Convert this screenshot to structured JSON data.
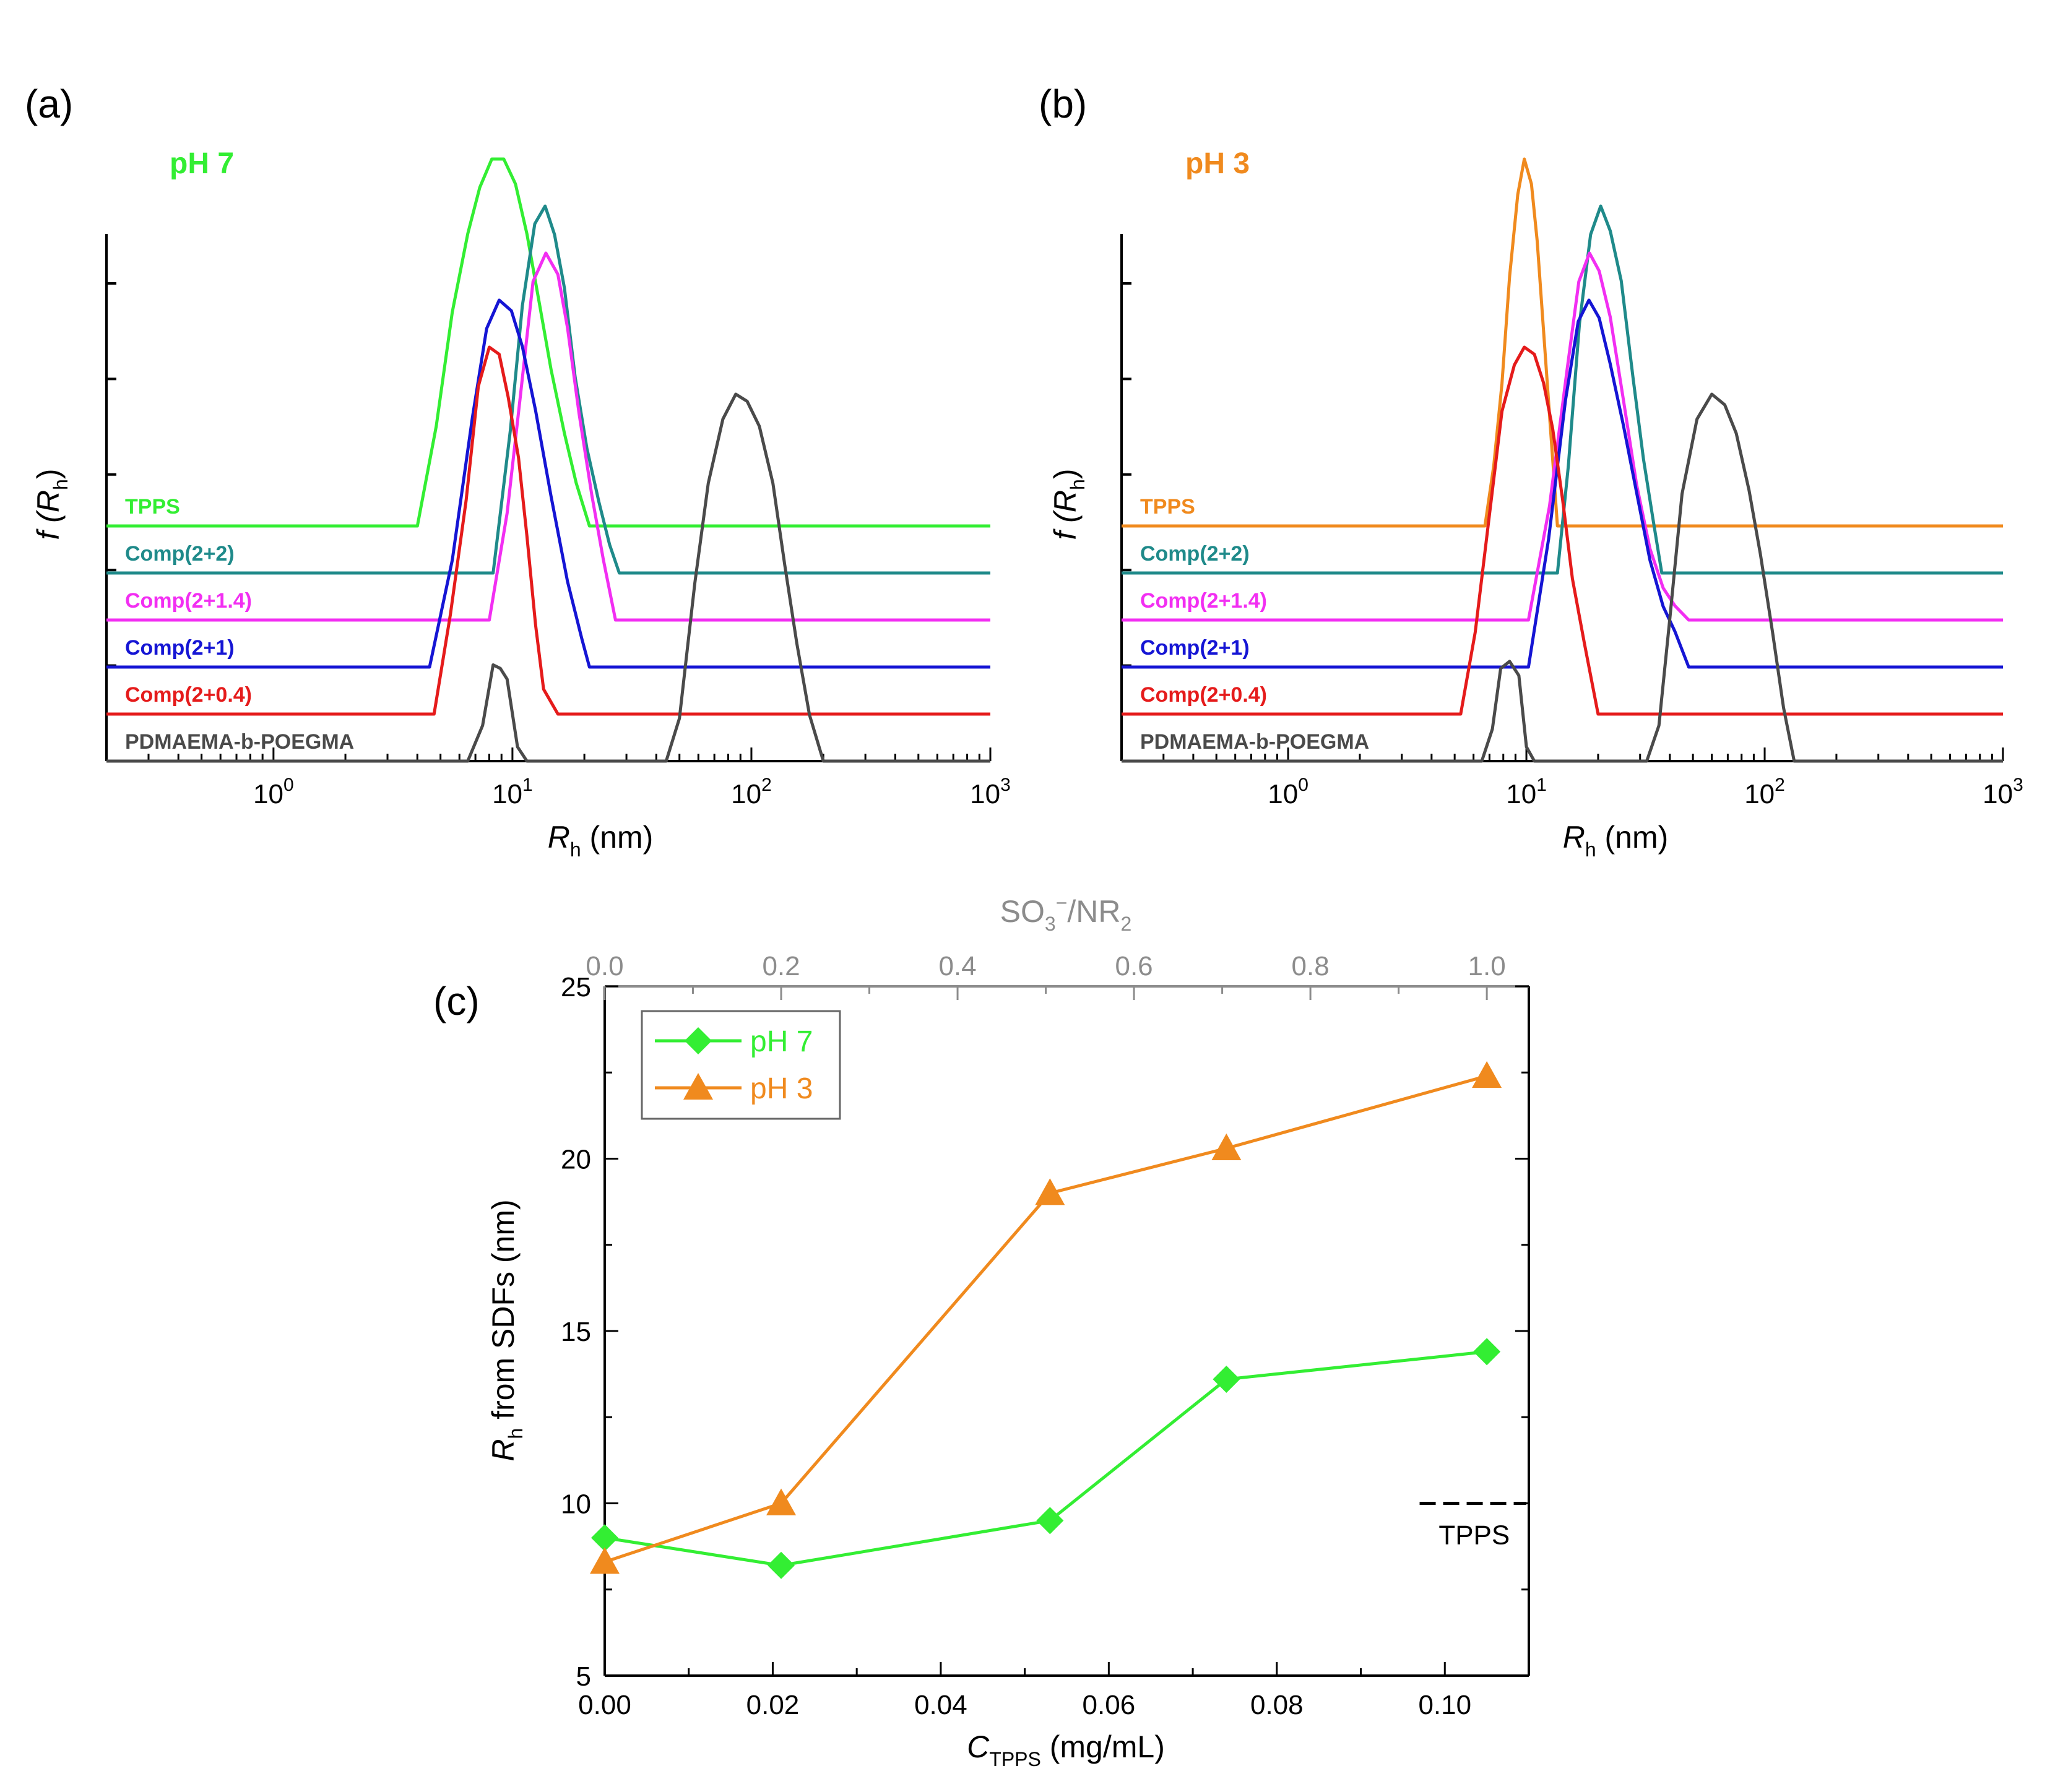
{
  "chart_data": [
    {
      "type": "line",
      "panel_label": "(a)",
      "condition_label": "pH 7",
      "condition_color": "#33ee33",
      "xlabel_main": "R",
      "xlabel_sub": "h",
      "xlabel_unit": " (nm)",
      "ylabel_main": "f (R",
      "ylabel_sub": "h",
      "ylabel_end": ")",
      "x_scale": "log",
      "xlim": [
        0.2,
        1000
      ],
      "x_ticks": [
        {
          "base": "10",
          "exp": "0"
        },
        {
          "base": "10",
          "exp": "1"
        },
        {
          "base": "10",
          "exp": "2"
        },
        {
          "base": "10",
          "exp": "3"
        }
      ],
      "series": [
        {
          "name": "TPPS",
          "color": "#33ee33",
          "baseline": 5,
          "height": 10.3,
          "points": [
            [
              4,
              0
            ],
            [
              4.8,
              2.8
            ],
            [
              5.6,
              6.0
            ],
            [
              6.5,
              8.2
            ],
            [
              7.3,
              9.5
            ],
            [
              8.2,
              10.3
            ],
            [
              9.2,
              10.3
            ],
            [
              10.3,
              9.6
            ],
            [
              11.5,
              8.2
            ],
            [
              13,
              6.2
            ],
            [
              14.5,
              4.4
            ],
            [
              16.5,
              2.6
            ],
            [
              18.5,
              1.2
            ],
            [
              21,
              0
            ]
          ]
        },
        {
          "name": "Comp(2+2)",
          "color": "#1f8a8a",
          "baseline": 4,
          "height": 10.3,
          "points": [
            [
              8.3,
              0
            ],
            [
              9.8,
              4.0
            ],
            [
              11,
              7.5
            ],
            [
              12.4,
              9.8
            ],
            [
              13.7,
              10.3
            ],
            [
              15,
              9.5
            ],
            [
              16.5,
              8.0
            ],
            [
              18.3,
              5.5
            ],
            [
              20.5,
              3.5
            ],
            [
              23,
              2.0
            ],
            [
              25.5,
              0.8
            ],
            [
              28,
              0
            ]
          ]
        },
        {
          "name": "Comp(2+1.4)",
          "color": "#f22ef2",
          "baseline": 3,
          "height": 10.3,
          "points": [
            [
              6.5,
              0
            ],
            [
              8,
              0
            ],
            [
              9.5,
              3.0
            ],
            [
              10.8,
              6.3
            ],
            [
              12.2,
              9.5
            ],
            [
              13.8,
              10.3
            ],
            [
              15.5,
              9.7
            ],
            [
              17,
              8.2
            ],
            [
              19,
              5.8
            ],
            [
              21.5,
              3.5
            ],
            [
              24,
              1.7
            ],
            [
              27,
              0
            ]
          ]
        },
        {
          "name": "Comp(2+1)",
          "color": "#1515d4",
          "baseline": 2,
          "height": 10.3,
          "points": [
            [
              4.5,
              0
            ],
            [
              5.6,
              3.0
            ],
            [
              6.8,
              7.0
            ],
            [
              7.8,
              9.5
            ],
            [
              8.8,
              10.3
            ],
            [
              9.9,
              10.0
            ],
            [
              11,
              9.0
            ],
            [
              12.5,
              7.2
            ],
            [
              14.5,
              4.8
            ],
            [
              17,
              2.4
            ],
            [
              19.5,
              0.8
            ],
            [
              21,
              0
            ]
          ]
        },
        {
          "name": "Comp(2+0.4)",
          "color": "#e51b1b",
          "baseline": 1,
          "height": 10.3,
          "points": [
            [
              4.7,
              0
            ],
            [
              5.5,
              2.8
            ],
            [
              6.4,
              6.0
            ],
            [
              7.2,
              9.2
            ],
            [
              8,
              10.3
            ],
            [
              8.8,
              10.1
            ],
            [
              9.6,
              8.9
            ],
            [
              10.6,
              7.2
            ],
            [
              11.5,
              5.0
            ],
            [
              12.5,
              2.5
            ],
            [
              13.5,
              0.7
            ],
            [
              15.5,
              0
            ]
          ]
        },
        {
          "name": "PDMAEMA-b-POEGMA",
          "color": "#4a4a4a",
          "baseline": 0,
          "height": 10.3,
          "points": [
            [
              6.5,
              0
            ],
            [
              7.5,
              1.0
            ],
            [
              8.3,
              2.7
            ],
            [
              8.9,
              2.6
            ],
            [
              9.5,
              2.3
            ],
            [
              10.5,
              0.4
            ],
            [
              11.5,
              0
            ],
            [
              44,
              0
            ],
            [
              50,
              1.2
            ],
            [
              58,
              5.0
            ],
            [
              66,
              7.8
            ],
            [
              76,
              9.6
            ],
            [
              86,
              10.3
            ],
            [
              96,
              10.1
            ],
            [
              108,
              9.4
            ],
            [
              123,
              7.8
            ],
            [
              138,
              5.5
            ],
            [
              155,
              3.3
            ],
            [
              175,
              1.3
            ],
            [
              200,
              0
            ]
          ]
        }
      ]
    },
    {
      "type": "line",
      "panel_label": "(b)",
      "condition_label": "pH 3",
      "condition_color": "#f08a1e",
      "xlabel_main": "R",
      "xlabel_sub": "h",
      "xlabel_unit": " (nm)",
      "ylabel_main": "f (R",
      "ylabel_sub": "h",
      "ylabel_end": ")",
      "x_scale": "log",
      "xlim": [
        0.2,
        1000
      ],
      "x_ticks": [
        {
          "base": "10",
          "exp": "0"
        },
        {
          "base": "10",
          "exp": "1"
        },
        {
          "base": "10",
          "exp": "2"
        },
        {
          "base": "10",
          "exp": "3"
        }
      ],
      "series": [
        {
          "name": "TPPS",
          "color": "#f08a1e",
          "baseline": 5,
          "height": 10.3,
          "points": [
            [
              6.7,
              0
            ],
            [
              7.3,
              1.7
            ],
            [
              7.9,
              4.0
            ],
            [
              8.5,
              7.0
            ],
            [
              9.2,
              9.3
            ],
            [
              9.8,
              10.3
            ],
            [
              10.5,
              9.6
            ],
            [
              11.1,
              8.0
            ],
            [
              11.8,
              5.5
            ],
            [
              12.6,
              2.8
            ],
            [
              13.5,
              0
            ]
          ]
        },
        {
          "name": "Comp(2+2)",
          "color": "#1f8a8a",
          "baseline": 4,
          "height": 10.3,
          "points": [
            [
              13.5,
              0
            ],
            [
              15,
              3.0
            ],
            [
              16.7,
              7.0
            ],
            [
              18.6,
              9.5
            ],
            [
              20.5,
              10.3
            ],
            [
              22.5,
              9.6
            ],
            [
              25,
              8.2
            ],
            [
              28,
              5.5
            ],
            [
              31,
              3.2
            ],
            [
              34,
              1.5
            ],
            [
              37,
              0
            ]
          ]
        },
        {
          "name": "Comp(2+1.4)",
          "color": "#f22ef2",
          "baseline": 3,
          "height": 10.3,
          "points": [
            [
              10.2,
              0
            ],
            [
              12.5,
              3.2
            ],
            [
              14.8,
              7.0
            ],
            [
              16.6,
              9.5
            ],
            [
              18.4,
              10.3
            ],
            [
              20.2,
              9.8
            ],
            [
              22.5,
              8.5
            ],
            [
              25.5,
              6.2
            ],
            [
              29,
              3.8
            ],
            [
              33,
              2.0
            ],
            [
              37.5,
              0.9
            ],
            [
              42,
              0.4
            ],
            [
              48,
              0
            ]
          ]
        },
        {
          "name": "Comp(2+1)",
          "color": "#1515d4",
          "baseline": 2,
          "height": 10.3,
          "points": [
            [
              10.2,
              0
            ],
            [
              12.4,
              3.6
            ],
            [
              14.6,
              7.5
            ],
            [
              16.5,
              9.7
            ],
            [
              18.3,
              10.3
            ],
            [
              20.2,
              9.8
            ],
            [
              22.5,
              8.5
            ],
            [
              25.5,
              6.8
            ],
            [
              29,
              4.9
            ],
            [
              33,
              3.0
            ],
            [
              37.5,
              1.7
            ],
            [
              42,
              1.0
            ],
            [
              48,
              0
            ]
          ]
        },
        {
          "name": "Comp(2+0.4)",
          "color": "#e51b1b",
          "baseline": 1,
          "height": 10.3,
          "points": [
            [
              5.3,
              0
            ],
            [
              6.1,
              2.3
            ],
            [
              7,
              5.6
            ],
            [
              7.9,
              8.5
            ],
            [
              8.9,
              9.8
            ],
            [
              9.8,
              10.3
            ],
            [
              10.8,
              10.1
            ],
            [
              11.8,
              9.3
            ],
            [
              12.9,
              8.0
            ],
            [
              14.2,
              6.0
            ],
            [
              15.6,
              3.8
            ],
            [
              17.5,
              2.0
            ],
            [
              20,
              0
            ]
          ]
        },
        {
          "name": "PDMAEMA-b-POEGMA",
          "color": "#4a4a4a",
          "baseline": 0,
          "height": 10.3,
          "points": [
            [
              6.5,
              0
            ],
            [
              7.2,
              0.9
            ],
            [
              7.8,
              2.6
            ],
            [
              8.5,
              2.8
            ],
            [
              9.3,
              2.4
            ],
            [
              10,
              0.4
            ],
            [
              10.8,
              0
            ],
            [
              32,
              0
            ],
            [
              36,
              1.0
            ],
            [
              40,
              4.0
            ],
            [
              45,
              7.5
            ],
            [
              52,
              9.6
            ],
            [
              60,
              10.3
            ],
            [
              68,
              10.0
            ],
            [
              76,
              9.2
            ],
            [
              86,
              7.6
            ],
            [
              96,
              5.8
            ],
            [
              108,
              3.6
            ],
            [
              120,
              1.5
            ],
            [
              133,
              0
            ]
          ]
        }
      ]
    },
    {
      "type": "line",
      "panel_label": "(c)",
      "xlabel_main": "C",
      "xlabel_sub": "TPPS",
      "xlabel_unit": " (mg/mL)",
      "ylabel_main": "R",
      "ylabel_sub": "h",
      "ylabel_rest": " from SDFs (nm)",
      "top_xlabel_a": "SO",
      "top_xlabel_sub": "3",
      "top_xlabel_sup": "−",
      "top_xlabel_b": "/NR",
      "top_xlabel_sub2": "2",
      "xlim": [
        0,
        0.11
      ],
      "ylim": [
        5,
        25
      ],
      "x_ticks": [
        "0.00",
        "0.02",
        "0.04",
        "0.06",
        "0.08",
        "0.10"
      ],
      "y_ticks": [
        "5",
        "10",
        "15",
        "20",
        "25"
      ],
      "top_ticks": [
        "0.0",
        "0.2",
        "0.4",
        "0.6",
        "0.8",
        "1.0"
      ],
      "top_xlim": [
        0,
        1.0
      ],
      "reference_line": {
        "label": "TPPS",
        "y": 10,
        "x_from": 0.097,
        "x_to": 0.111
      },
      "legend_position": "top-left",
      "series": [
        {
          "name": "pH 7",
          "color": "#33ee33",
          "marker": "diamond",
          "x": [
            0,
            0.021,
            0.053,
            0.074,
            0.105
          ],
          "y": [
            9.0,
            8.2,
            9.5,
            13.6,
            14.4
          ]
        },
        {
          "name": "pH 3",
          "color": "#f08a1e",
          "marker": "triangle",
          "x": [
            0,
            0.021,
            0.053,
            0.074,
            0.105
          ],
          "y": [
            8.3,
            10.0,
            19.0,
            20.3,
            22.4
          ]
        }
      ]
    }
  ]
}
